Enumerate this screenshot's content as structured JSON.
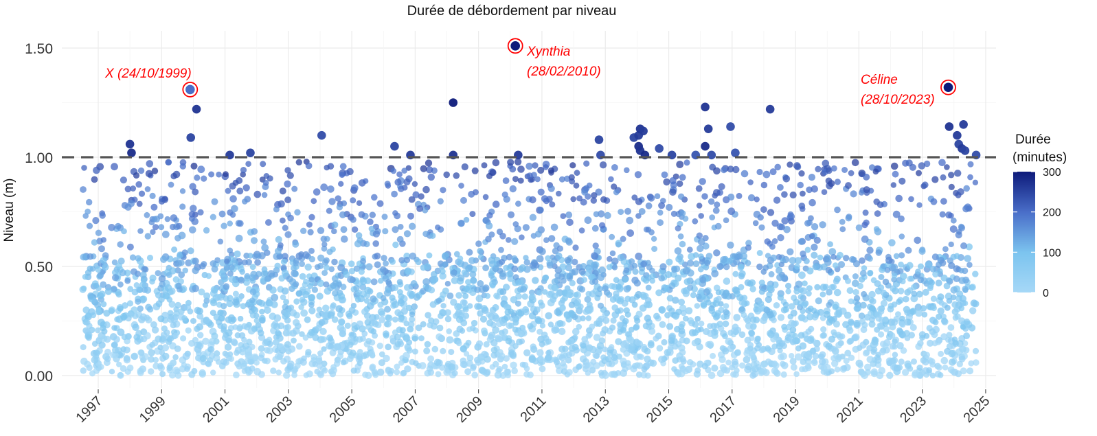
{
  "chart_data": {
    "type": "scatter",
    "title": "Durée de débordement par niveau",
    "xlabel": "",
    "ylabel": "Niveau (m)",
    "xlim": [
      1996.0,
      2025.5
    ],
    "ylim": [
      -0.02,
      1.6
    ],
    "x_ticks": [
      1997,
      1999,
      2001,
      2003,
      2005,
      2007,
      2009,
      2011,
      2013,
      2015,
      2017,
      2019,
      2021,
      2023,
      2025
    ],
    "x_tick_labels": [
      "1997",
      "1999",
      "2001",
      "2003",
      "2005",
      "2007",
      "2009",
      "2011",
      "2013",
      "2015",
      "2017",
      "2019",
      "2021",
      "2023",
      "2025"
    ],
    "y_ticks": [
      0.0,
      0.5,
      1.0,
      1.5
    ],
    "y_tick_labels": [
      "0.00",
      "0.50",
      "1.00",
      "1.50"
    ],
    "grid": true,
    "reference_line": {
      "y": 1.0,
      "style": "dashed",
      "color": "#555555"
    },
    "color_scale": {
      "name": "Durée\n(minutes)",
      "title_lines": [
        "Durée",
        "(minutes)"
      ],
      "min": 0,
      "max": 300,
      "ticks": [
        0,
        100,
        200,
        300
      ],
      "low_color": "#a6d8f7",
      "mid_color": "#5b9bd8",
      "high_color": "#0d1a7a",
      "legend_position": "right"
    },
    "dense_cloud": {
      "description_range_x": [
        1996.5,
        2024.7
      ],
      "approx_points": 3600
    },
    "highlighted_points": [
      {
        "x": 1999.9,
        "y": 1.31,
        "duration": 200,
        "label": "X (24/10/1999)",
        "circled": true
      },
      {
        "x": 2010.16,
        "y": 1.51,
        "duration": 300,
        "label": "Xynthia (28/02/2010)",
        "circled": true
      },
      {
        "x": 2023.82,
        "y": 1.32,
        "duration": 300,
        "label": "Céline (28/10/2023)",
        "circled": true
      }
    ],
    "high_points": [
      {
        "x": 1998.0,
        "y": 1.06,
        "duration": 270
      },
      {
        "x": 1998.05,
        "y": 1.02,
        "duration": 280
      },
      {
        "x": 1999.92,
        "y": 1.09,
        "duration": 250
      },
      {
        "x": 2000.1,
        "y": 1.22,
        "duration": 270
      },
      {
        "x": 2001.15,
        "y": 1.01,
        "duration": 260
      },
      {
        "x": 2001.8,
        "y": 1.02,
        "duration": 250
      },
      {
        "x": 2004.05,
        "y": 1.1,
        "duration": 240
      },
      {
        "x": 2006.35,
        "y": 1.05,
        "duration": 250
      },
      {
        "x": 2006.85,
        "y": 1.01,
        "duration": 260
      },
      {
        "x": 2008.2,
        "y": 1.25,
        "duration": 300
      },
      {
        "x": 2008.2,
        "y": 1.01,
        "duration": 270
      },
      {
        "x": 2010.25,
        "y": 1.01,
        "duration": 260
      },
      {
        "x": 2012.8,
        "y": 1.08,
        "duration": 250
      },
      {
        "x": 2012.85,
        "y": 1.01,
        "duration": 240
      },
      {
        "x": 2013.9,
        "y": 1.09,
        "duration": 250
      },
      {
        "x": 2014.05,
        "y": 1.1,
        "duration": 260
      },
      {
        "x": 2014.1,
        "y": 1.13,
        "duration": 270
      },
      {
        "x": 2014.2,
        "y": 1.12,
        "duration": 260
      },
      {
        "x": 2014.05,
        "y": 1.05,
        "duration": 280
      },
      {
        "x": 2014.1,
        "y": 1.03,
        "duration": 270
      },
      {
        "x": 2014.25,
        "y": 1.01,
        "duration": 280
      },
      {
        "x": 2014.7,
        "y": 1.04,
        "duration": 240
      },
      {
        "x": 2015.1,
        "y": 1.01,
        "duration": 250
      },
      {
        "x": 2016.15,
        "y": 1.23,
        "duration": 270
      },
      {
        "x": 2016.25,
        "y": 1.13,
        "duration": 260
      },
      {
        "x": 2016.15,
        "y": 1.05,
        "duration": 280
      },
      {
        "x": 2016.35,
        "y": 1.01,
        "duration": 240
      },
      {
        "x": 2015.85,
        "y": 1.01,
        "duration": 230
      },
      {
        "x": 2016.95,
        "y": 1.14,
        "duration": 240
      },
      {
        "x": 2017.1,
        "y": 1.02,
        "duration": 230
      },
      {
        "x": 2018.2,
        "y": 1.22,
        "duration": 260
      },
      {
        "x": 2023.85,
        "y": 1.14,
        "duration": 270
      },
      {
        "x": 2024.1,
        "y": 1.1,
        "duration": 260
      },
      {
        "x": 2024.15,
        "y": 1.06,
        "duration": 250
      },
      {
        "x": 2024.3,
        "y": 1.15,
        "duration": 260
      },
      {
        "x": 2024.25,
        "y": 1.04,
        "duration": 260
      },
      {
        "x": 2024.35,
        "y": 1.03,
        "duration": 250
      },
      {
        "x": 2024.7,
        "y": 1.01,
        "duration": 240
      }
    ]
  }
}
